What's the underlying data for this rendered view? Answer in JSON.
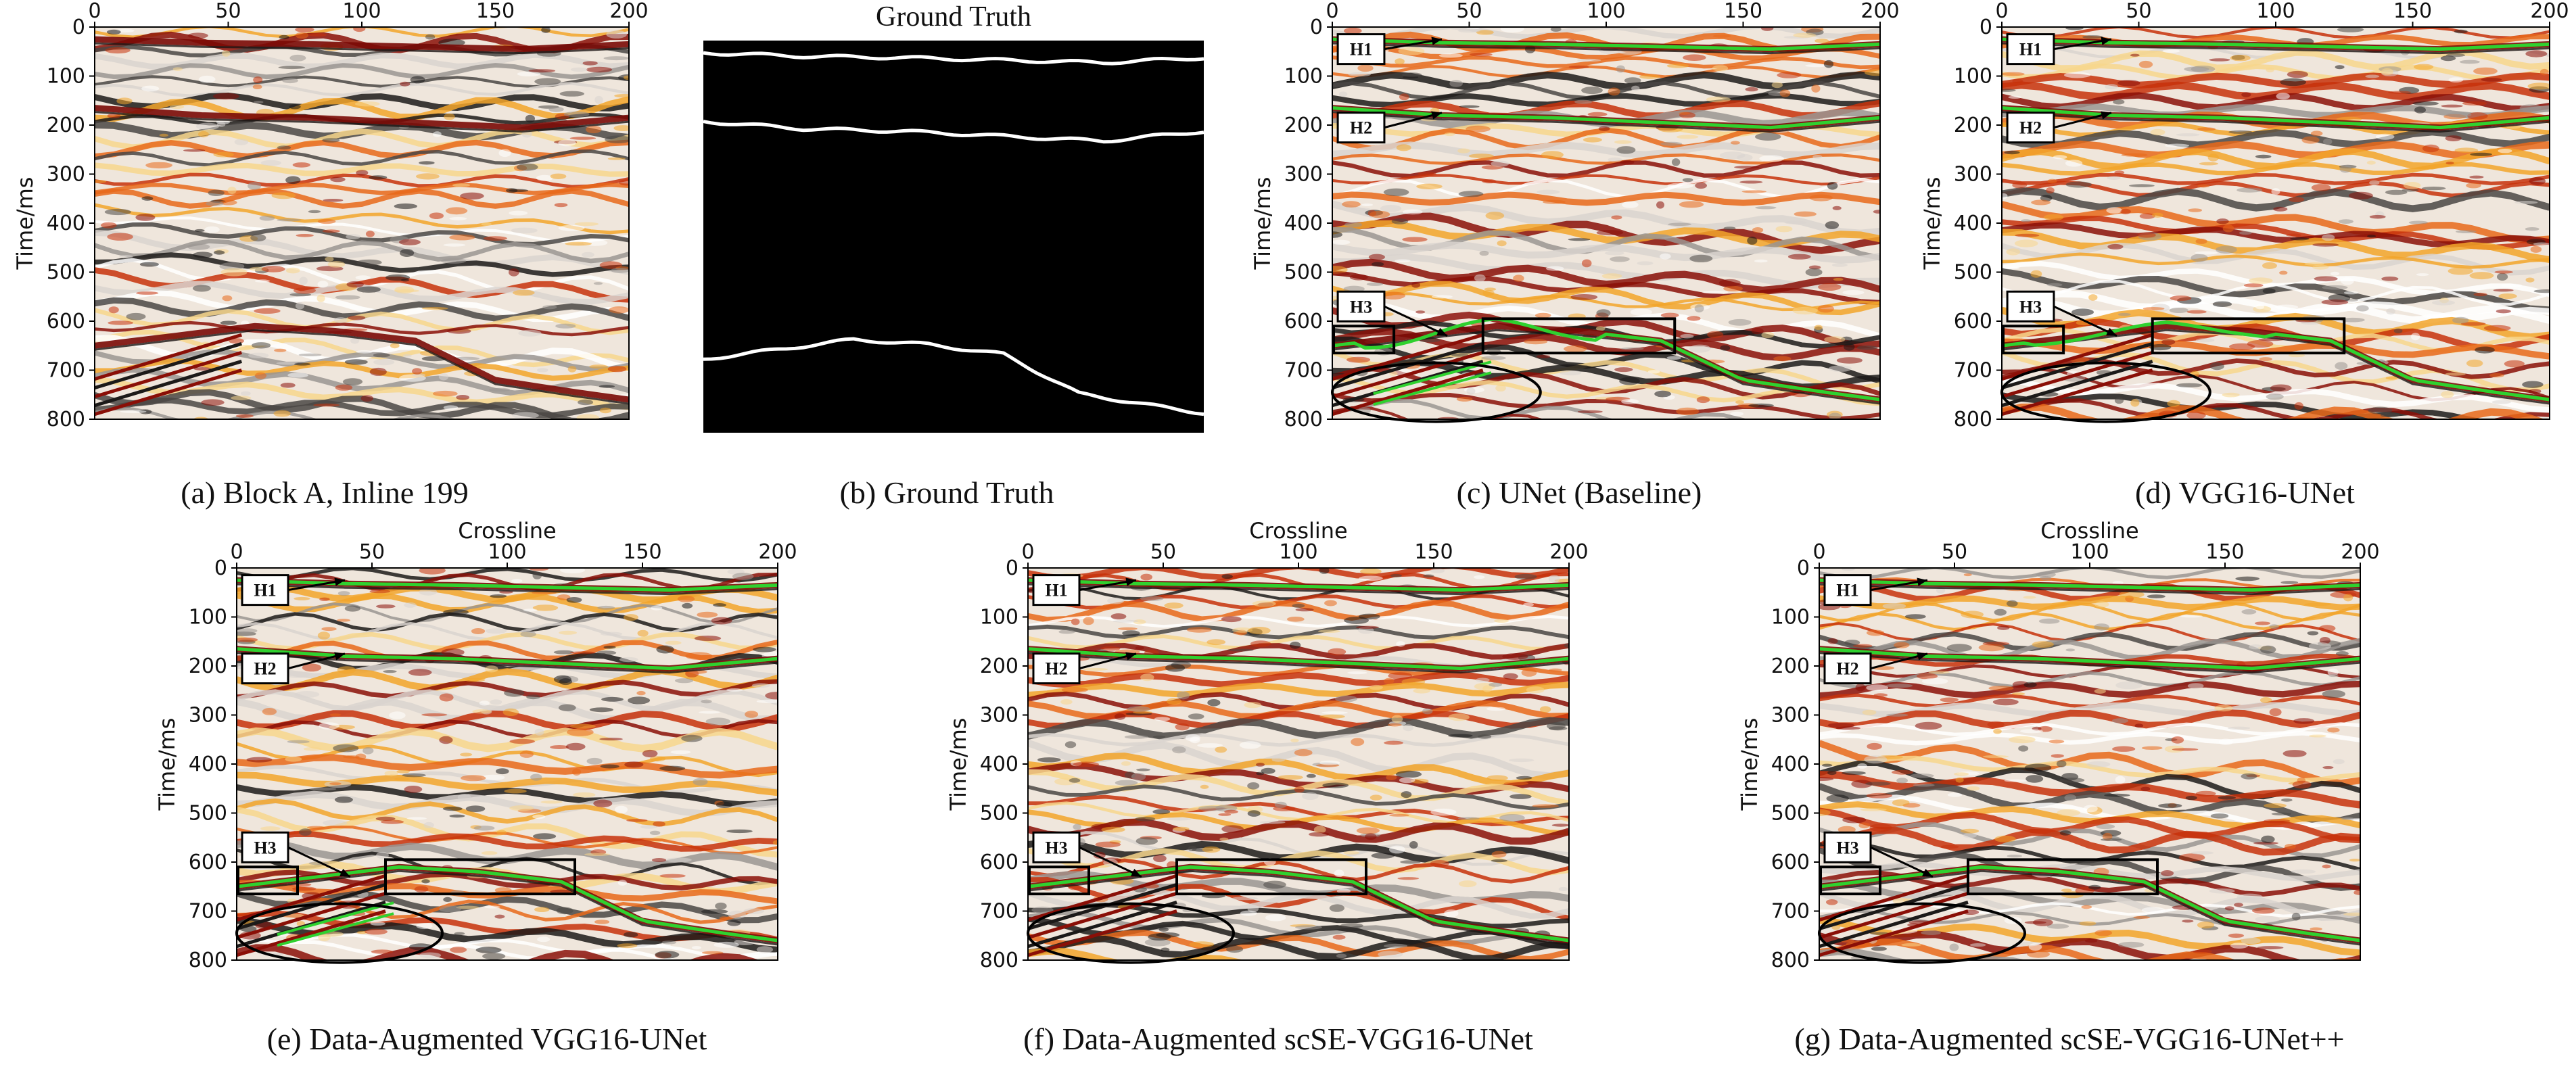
{
  "figure": {
    "panels": [
      {
        "id": "a",
        "caption": "(a) Block A, Inline 199",
        "kind": "seismic",
        "has_horizon_overlay": false,
        "show_axes": true
      },
      {
        "id": "b",
        "caption": "(b) Ground Truth",
        "kind": "ground_truth",
        "title": "Ground Truth",
        "show_axes": false
      },
      {
        "id": "c",
        "caption": "(c) UNet (Baseline)",
        "kind": "seismic",
        "has_horizon_overlay": true,
        "show_axes": true
      },
      {
        "id": "d",
        "caption": "(d) VGG16-UNet",
        "kind": "seismic",
        "has_horizon_overlay": true,
        "show_axes": true
      },
      {
        "id": "e",
        "caption": "(e)  Data-Augmented VGG16-UNet",
        "kind": "seismic",
        "has_horizon_overlay": true,
        "show_axes": true
      },
      {
        "id": "f",
        "caption": "(f)  Data-Augmented scSE-VGG16-UNet",
        "kind": "seismic",
        "has_horizon_overlay": true,
        "show_axes": true
      },
      {
        "id": "g",
        "caption": "(g)  Data-Augmented scSE-VGG16-UNet++",
        "kind": "seismic",
        "has_horizon_overlay": true,
        "show_axes": true
      }
    ],
    "horizon_labels": [
      "H1",
      "H2",
      "H3"
    ],
    "colors": {
      "horizon_prediction": "#2fd12f",
      "ground_truth_line": "#ffffff",
      "ground_truth_bg": "#000000",
      "annotation": "#000000"
    }
  },
  "chart_data": {
    "type": "heatmap",
    "xlabel": "Crossline",
    "ylabel": "Time/ms",
    "xticks": [
      0,
      50,
      100,
      150,
      200
    ],
    "yticks": [
      0,
      100,
      200,
      300,
      400,
      500,
      600,
      700,
      800
    ],
    "xlim": [
      0,
      200
    ],
    "ylim": [
      800,
      0
    ],
    "horizons": [
      {
        "name": "H1",
        "x": [
          0,
          40,
          80,
          120,
          160,
          200
        ],
        "y": [
          25,
          32,
          35,
          40,
          45,
          35
        ]
      },
      {
        "name": "H2",
        "x": [
          0,
          40,
          80,
          120,
          160,
          200
        ],
        "y": [
          165,
          180,
          185,
          195,
          205,
          185
        ]
      },
      {
        "name": "H3",
        "x": [
          0,
          30,
          60,
          90,
          120,
          150,
          180,
          200
        ],
        "y": [
          650,
          630,
          610,
          620,
          640,
          720,
          745,
          760
        ]
      }
    ]
  }
}
